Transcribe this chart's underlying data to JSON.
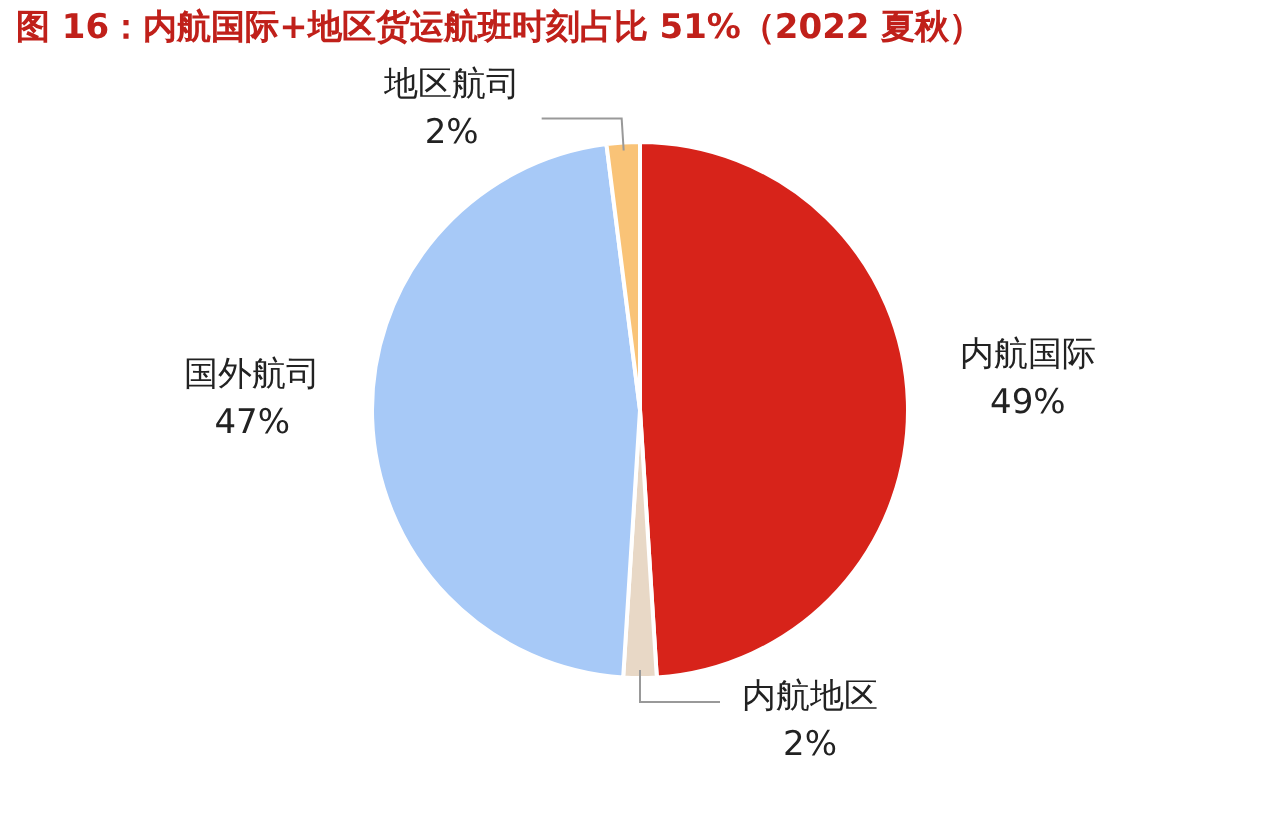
{
  "chart_data": {
    "type": "pie",
    "title": "图 16：内航国际+地区货运航班时刻占比 51%（2022 夏秋）",
    "categories": [
      "内航国际",
      "内航地区",
      "国外航司",
      "地区航司"
    ],
    "values": [
      49,
      2,
      47,
      2
    ],
    "value_labels": [
      "49%",
      "2%",
      "47%",
      "2%"
    ],
    "colors": [
      "#d7231a",
      "#e8d8c6",
      "#a7c9f7",
      "#f9c377"
    ],
    "legend": false
  }
}
